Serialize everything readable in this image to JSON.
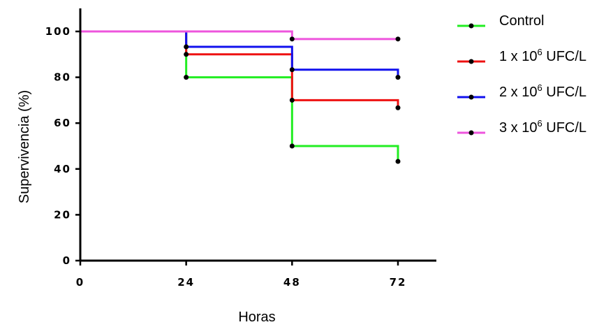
{
  "chart_data": {
    "type": "line",
    "step": true,
    "xlabel": "Horas",
    "ylabel": "Supervivencia (%)",
    "xlim": [
      0,
      84
    ],
    "ylim": [
      0,
      108
    ],
    "xticks": [
      0,
      24,
      48,
      72
    ],
    "yticks": [
      0,
      20,
      40,
      60,
      80,
      100
    ],
    "grid": false,
    "legend_position": "right",
    "series": [
      {
        "name": "Control",
        "name_base": "Control",
        "name_exp": "",
        "name_unit": "",
        "color": "#22ee22",
        "x": [
          0,
          24,
          48,
          72
        ],
        "y": [
          100,
          80,
          50,
          43.3
        ],
        "markers": [
          [
            24,
            80
          ],
          [
            48,
            50
          ],
          [
            72,
            43.3
          ]
        ]
      },
      {
        "name": "1 x 10^6 UFC/L",
        "name_base": "1 x 10",
        "name_exp": "6",
        "name_unit": " UFC/L",
        "color": "#ee1111",
        "x": [
          0,
          24,
          48,
          72
        ],
        "y": [
          100,
          90,
          70,
          66.7
        ],
        "markers": [
          [
            24,
            90
          ],
          [
            48,
            70
          ],
          [
            72,
            66.7
          ]
        ]
      },
      {
        "name": "2 x 10^6 UFC/L",
        "name_base": "2 x 10",
        "name_exp": "6",
        "name_unit": " UFC/L",
        "color": "#1111ee",
        "x": [
          0,
          24,
          48,
          72
        ],
        "y": [
          100,
          93.3,
          83.3,
          80
        ],
        "markers": [
          [
            24,
            93.3
          ],
          [
            48,
            83.3
          ],
          [
            72,
            80
          ]
        ]
      },
      {
        "name": "3 x 10^6 UFC/L",
        "name_base": "3 x 10",
        "name_exp": "6",
        "name_unit": " UFC/L",
        "color": "#ee55dd",
        "x": [
          0,
          24,
          48,
          72
        ],
        "y": [
          100,
          100,
          96.7,
          96.7
        ],
        "markers": [
          [
            48,
            96.7
          ],
          [
            72,
            96.7
          ]
        ]
      }
    ]
  }
}
